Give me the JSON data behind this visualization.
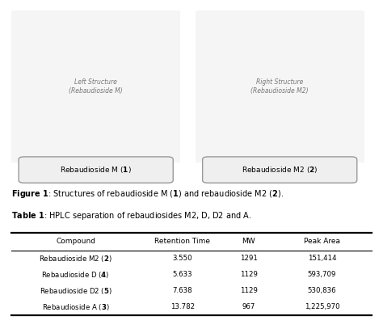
{
  "figure_caption_bold": "Figure 1",
  "figure_caption_rest": ": Structures of rebaudioside M (",
  "figure_caption_num1": "1",
  "figure_caption_mid": ") and rebaudioside M2 (",
  "figure_caption_num2": "2",
  "figure_caption_end": ").",
  "table_title_bold": "Table 1",
  "table_title_rest": ": HPLC separation of rebaudiosides M2, D, D2 and A.",
  "columns": [
    "Compound",
    "Retention Time",
    "MW",
    "Peak Area"
  ],
  "compound_prefixes": [
    "Rebaudioside M2 (",
    "Rebaudioside D (",
    "Rebaudioside D2 (",
    "Rebaudioside A ("
  ],
  "compound_nums": [
    "2",
    "4",
    "5",
    "3"
  ],
  "retention_times": [
    "3.550",
    "5.633",
    "7.638",
    "13.782"
  ],
  "mw": [
    "1291",
    "1129",
    "1129",
    "967"
  ],
  "peak_areas": [
    "151,414",
    "593,709",
    "530,836",
    "1,225,970"
  ],
  "label_left_bold": "Rebaudioside M (",
  "label_left_num": "1",
  "label_left_end": ")",
  "label_right_bold": "Rebaudioside M2 (",
  "label_right_num": "2",
  "label_right_end": ")",
  "bg_color": "#ffffff",
  "text_color": "#000000"
}
